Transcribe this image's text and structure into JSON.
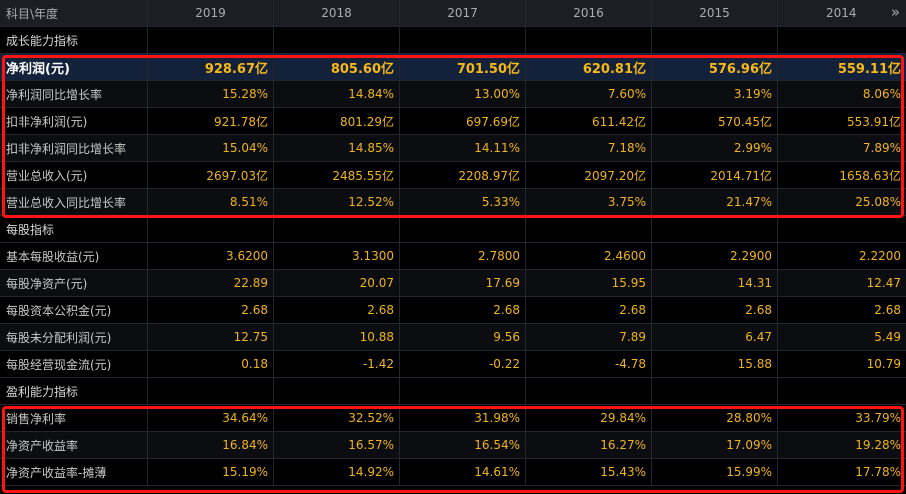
{
  "header": {
    "label": "科目\\年度",
    "years": [
      "2019",
      "2018",
      "2017",
      "2016",
      "2015",
      "2014"
    ],
    "more_icon": "double-chevron-right-icon",
    "more_glyph": "»"
  },
  "sections": [
    {
      "title": "成长能力指标",
      "rows": [
        {
          "label": "净利润(元)",
          "values": [
            "928.67亿",
            "805.60亿",
            "701.50亿",
            "620.81亿",
            "576.96亿",
            "559.11亿"
          ],
          "highlight": true
        },
        {
          "label": "净利润同比增长率",
          "values": [
            "15.28%",
            "14.84%",
            "13.00%",
            "7.60%",
            "3.19%",
            "8.06%"
          ]
        },
        {
          "label": "扣非净利润(元)",
          "values": [
            "921.78亿",
            "801.29亿",
            "697.69亿",
            "611.42亿",
            "570.45亿",
            "553.91亿"
          ]
        },
        {
          "label": "扣非净利润同比增长率",
          "values": [
            "15.04%",
            "14.85%",
            "14.11%",
            "7.18%",
            "2.99%",
            "7.89%"
          ]
        },
        {
          "label": "营业总收入(元)",
          "values": [
            "2697.03亿",
            "2485.55亿",
            "2208.97亿",
            "2097.20亿",
            "2014.71亿",
            "1658.63亿"
          ]
        },
        {
          "label": "营业总收入同比增长率",
          "values": [
            "8.51%",
            "12.52%",
            "5.33%",
            "3.75%",
            "21.47%",
            "25.08%"
          ]
        }
      ]
    },
    {
      "title": "每股指标",
      "rows": [
        {
          "label": "基本每股收益(元)",
          "values": [
            "3.6200",
            "3.1300",
            "2.7800",
            "2.4600",
            "2.2900",
            "2.2200"
          ]
        },
        {
          "label": "每股净资产(元)",
          "values": [
            "22.89",
            "20.07",
            "17.69",
            "15.95",
            "14.31",
            "12.47"
          ]
        },
        {
          "label": "每股资本公积金(元)",
          "values": [
            "2.68",
            "2.68",
            "2.68",
            "2.68",
            "2.68",
            "2.68"
          ]
        },
        {
          "label": "每股未分配利润(元)",
          "values": [
            "12.75",
            "10.88",
            "9.56",
            "7.89",
            "6.47",
            "5.49"
          ]
        },
        {
          "label": "每股经营现金流(元)",
          "values": [
            "0.18",
            "-1.42",
            "-0.22",
            "-4.78",
            "15.88",
            "10.79"
          ]
        }
      ]
    },
    {
      "title": "盈利能力指标",
      "rows": [
        {
          "label": "销售净利率",
          "values": [
            "34.64%",
            "32.52%",
            "31.98%",
            "29.84%",
            "28.80%",
            "33.79%"
          ]
        },
        {
          "label": "净资产收益率",
          "values": [
            "16.84%",
            "16.57%",
            "16.54%",
            "16.27%",
            "17.09%",
            "19.28%"
          ]
        },
        {
          "label": "净资产收益率-摊薄",
          "values": [
            "15.19%",
            "14.92%",
            "14.61%",
            "15.43%",
            "15.99%",
            "17.78%"
          ]
        }
      ]
    }
  ],
  "colors": {
    "value_text": "#f0b31e",
    "annotation_border": "#ff1414",
    "highlight_row_bg": "#14213a"
  }
}
